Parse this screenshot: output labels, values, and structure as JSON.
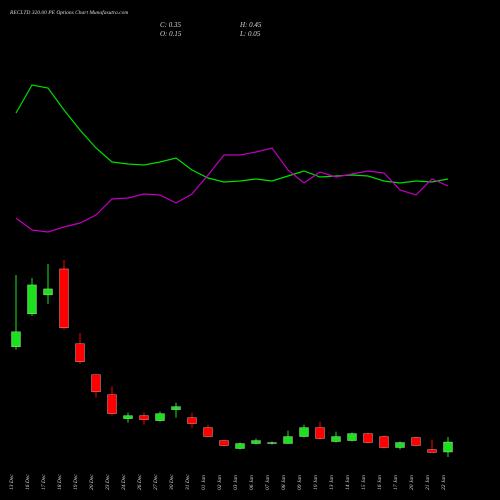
{
  "chart_data": {
    "type": "candlestick",
    "title": "RECLTD 320.00 PE Options Chart Munafasutra.com",
    "info": [
      "C: 0.35",
      "H: 0.45",
      "O: 0.15",
      "L: 0.05"
    ],
    "categories": [
      "13 Dec",
      "16 Dec",
      "17 Dec",
      "18 Dec",
      "19 Dec",
      "20 Dec",
      "23 Dec",
      "24 Dec",
      "26 Dec",
      "27 Dec",
      "30 Dec",
      "31 Dec",
      "01 Jan",
      "02 Jan",
      "03 Jan",
      "06 Jan",
      "07 Jan",
      "08 Jan",
      "09 Jan",
      "10 Jan",
      "13 Jan",
      "14 Jan",
      "15 Jan",
      "16 Jan",
      "17 Jan",
      "20 Jan",
      "21 Jan",
      "22 Jan"
    ],
    "open": [
      2.26,
      2.92,
      3.3,
      3.82,
      2.32,
      1.7,
      1.3,
      0.82,
      0.88,
      0.78,
      1.0,
      0.84,
      0.64,
      0.38,
      0.22,
      0.32,
      0.32,
      0.32,
      0.46,
      0.64,
      0.36,
      0.38,
      0.52,
      0.46,
      0.24,
      0.44,
      0.2,
      0.15
    ],
    "high": [
      3.7,
      3.64,
      3.92,
      4.0,
      2.54,
      1.7,
      1.46,
      0.94,
      0.94,
      0.96,
      1.14,
      0.94,
      0.7,
      0.4,
      0.34,
      0.42,
      0.36,
      0.58,
      0.7,
      0.76,
      0.56,
      0.54,
      0.54,
      0.48,
      0.36,
      0.46,
      0.4,
      0.45
    ],
    "low": [
      2.2,
      2.88,
      3.12,
      2.6,
      1.92,
      1.24,
      0.88,
      0.74,
      0.7,
      0.76,
      0.84,
      0.64,
      0.46,
      0.26,
      0.2,
      0.3,
      0.3,
      0.32,
      0.44,
      0.4,
      0.34,
      0.36,
      0.32,
      0.22,
      0.2,
      0.26,
      0.14,
      0.05
    ],
    "close": [
      2.56,
      3.5,
      3.42,
      2.64,
      1.96,
      1.36,
      0.92,
      0.88,
      0.8,
      0.92,
      1.06,
      0.72,
      0.46,
      0.28,
      0.32,
      0.38,
      0.34,
      0.46,
      0.64,
      0.42,
      0.46,
      0.52,
      0.34,
      0.24,
      0.34,
      0.28,
      0.14,
      0.35
    ],
    "up_color": "#1ee01e",
    "down_color": "#ff0000",
    "lines": [
      {
        "color": "#00dd00",
        "values": [
          137,
          165,
          162,
          140,
          120,
          102,
          88,
          86,
          85,
          88,
          92,
          80,
          72,
          68,
          69,
          71,
          69,
          74,
          79,
          73,
          74,
          75,
          74,
          69,
          67,
          69,
          68,
          71
        ]
      },
      {
        "color": "#c000c0",
        "values": [
          32,
          20,
          18,
          23,
          27,
          35,
          51,
          52,
          56,
          55,
          47,
          56,
          75,
          95,
          95,
          98,
          102,
          80,
          67,
          78,
          73,
          76,
          79,
          77,
          60,
          55,
          71,
          64
        ]
      }
    ]
  }
}
